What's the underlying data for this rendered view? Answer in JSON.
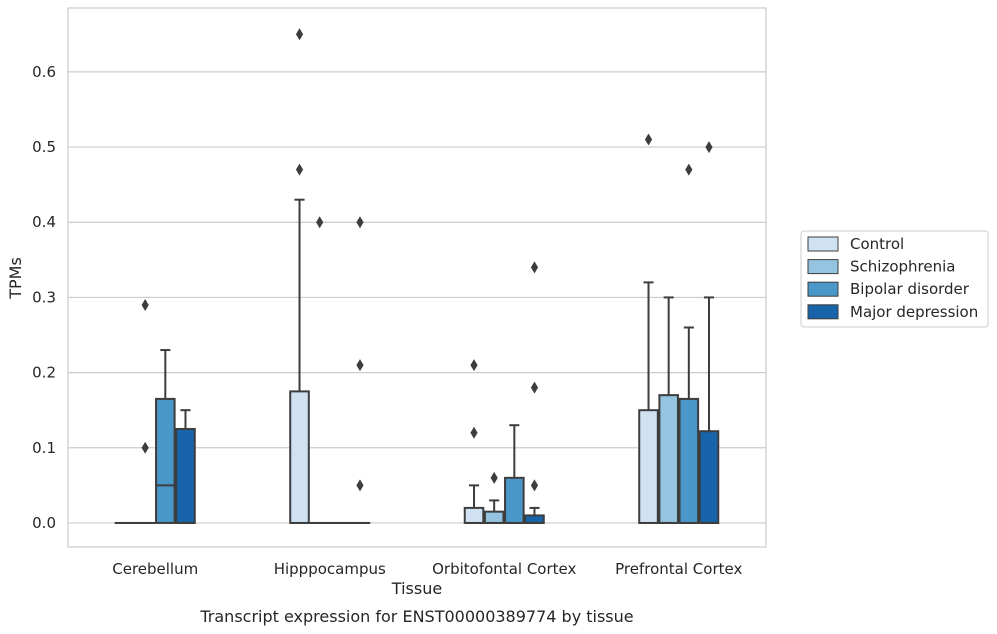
{
  "chart_data": {
    "type": "box",
    "title": "",
    "xlabel": "Tissue",
    "ylabel": "TPMs",
    "caption": "Transcript expression for ENST00000389774 by tissue",
    "ylim": [
      -0.032,
      0.685
    ],
    "yticks": [
      "0.0",
      "0.1",
      "0.2",
      "0.3",
      "0.4",
      "0.5",
      "0.6"
    ],
    "ytick_values": [
      0,
      0.1,
      0.2,
      0.3,
      0.4,
      0.5,
      0.6
    ],
    "grid": "horizontal",
    "legend_position": "right",
    "categories": [
      "Cerebellum",
      "Hipppocampus",
      "Orbitofontal Cortex",
      "Prefrontal Cortex"
    ],
    "series": [
      {
        "name": "Control",
        "color": "#d0e1f2",
        "boxes": [
          {
            "q1": 0,
            "median": 0,
            "q3": 0,
            "whisker_low": 0,
            "whisker_high": 0,
            "outliers": []
          },
          {
            "q1": 0,
            "median": 0,
            "q3": 0.175,
            "whisker_low": 0,
            "whisker_high": 0.43,
            "outliers": [
              0.47,
              0.65
            ]
          },
          {
            "q1": 0,
            "median": 0,
            "q3": 0.02,
            "whisker_low": 0,
            "whisker_high": 0.05,
            "outliers": [
              0.12,
              0.21
            ]
          },
          {
            "q1": 0,
            "median": 0,
            "q3": 0.15,
            "whisker_low": 0,
            "whisker_high": 0.32,
            "outliers": [
              0.51
            ]
          }
        ]
      },
      {
        "name": "Schizophrenia",
        "color": "#94c4df",
        "boxes": [
          {
            "q1": 0,
            "median": 0,
            "q3": 0,
            "whisker_low": 0,
            "whisker_high": 0,
            "outliers": [
              0.1,
              0.29
            ]
          },
          {
            "q1": 0,
            "median": 0,
            "q3": 0,
            "whisker_low": 0,
            "whisker_high": 0,
            "outliers": [
              0.4
            ]
          },
          {
            "q1": 0,
            "median": 0,
            "q3": 0.015,
            "whisker_low": 0,
            "whisker_high": 0.03,
            "outliers": [
              0.06
            ]
          },
          {
            "q1": 0,
            "median": 0,
            "q3": 0.17,
            "whisker_low": 0,
            "whisker_high": 0.3,
            "outliers": []
          }
        ]
      },
      {
        "name": "Bipolar disorder",
        "color": "#4a98c9",
        "boxes": [
          {
            "q1": 0,
            "median": 0.05,
            "q3": 0.165,
            "whisker_low": 0,
            "whisker_high": 0.23,
            "outliers": []
          },
          {
            "q1": 0,
            "median": 0,
            "q3": 0,
            "whisker_low": 0,
            "whisker_high": 0,
            "outliers": []
          },
          {
            "q1": 0,
            "median": 0,
            "q3": 0.06,
            "whisker_low": 0,
            "whisker_high": 0.13,
            "outliers": []
          },
          {
            "q1": 0,
            "median": 0,
            "q3": 0.165,
            "whisker_low": 0,
            "whisker_high": 0.26,
            "outliers": [
              0.47
            ]
          }
        ]
      },
      {
        "name": "Major depression",
        "color": "#1764ab",
        "boxes": [
          {
            "q1": 0,
            "median": 0,
            "q3": 0.125,
            "whisker_low": 0,
            "whisker_high": 0.15,
            "outliers": []
          },
          {
            "q1": 0,
            "median": 0,
            "q3": 0,
            "whisker_low": 0,
            "whisker_high": 0,
            "outliers": [
              0.05,
              0.21,
              0.4
            ]
          },
          {
            "q1": 0,
            "median": 0,
            "q3": 0.01,
            "whisker_low": 0,
            "whisker_high": 0.02,
            "outliers": [
              0.05,
              0.18,
              0.34
            ]
          },
          {
            "q1": 0,
            "median": 0,
            "q3": 0.122,
            "whisker_low": 0,
            "whisker_high": 0.3,
            "outliers": [
              0.5
            ]
          }
        ]
      }
    ]
  }
}
